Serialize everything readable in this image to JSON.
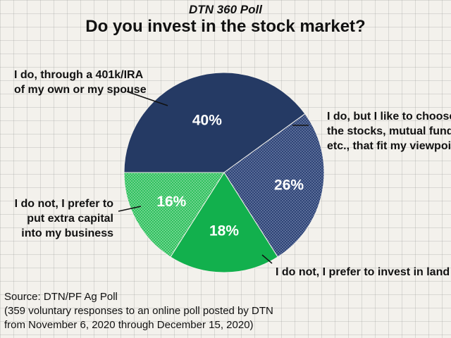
{
  "header": {
    "subtitle": "DTN 360 Poll",
    "title": "Do you invest in the stock market?"
  },
  "chart_data": {
    "type": "pie",
    "title": "Do you invest in the stock market?",
    "slices": [
      {
        "label": "I do, through a 401k/IRA of my own or my spouse",
        "value": 40,
        "display": "40%",
        "color": "#253a64"
      },
      {
        "label": "I do, but I like to choose the stocks, mutual funds, etc., that fit my viewpoint",
        "value": 26,
        "display": "26%",
        "color": "#2e4476"
      },
      {
        "label": "I do not, I prefer to invest in land",
        "value": 18,
        "display": "18%",
        "color": "#12b04d"
      },
      {
        "label": "I do not, I prefer to put extra capital into my business",
        "value": 16,
        "display": "16%",
        "color": "#30c05e"
      }
    ]
  },
  "labels": {
    "label_401k": [
      "I do, through a 401k/IRA",
      "of my own or my spouse"
    ],
    "label_choose": [
      "I do, but I like to choose",
      "the stocks, mutual funds,",
      "etc., that fit my viewpoint"
    ],
    "label_land": [
      "I do not, I prefer to invest in land"
    ],
    "label_business": [
      "I do not, I prefer to",
      "put extra capital",
      "into my business"
    ]
  },
  "source": {
    "line1": "Source: DTN/PF Ag Poll",
    "line2": "(359 voluntary responses to an online poll posted by DTN",
    "line3": "from November 6, 2020 through December 15, 2020)"
  }
}
